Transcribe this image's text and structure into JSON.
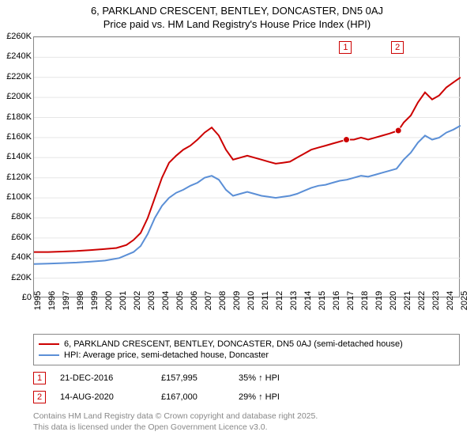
{
  "title_line1": "6, PARKLAND CRESCENT, BENTLEY, DONCASTER, DN5 0AJ",
  "title_line2": "Price paid vs. HM Land Registry's House Price Index (HPI)",
  "chart": {
    "type": "line",
    "background_color": "#ffffff",
    "grid_color": "#e6e6e6",
    "border_color": "#888888",
    "x_min_year": 1995,
    "x_max_year": 2025,
    "x_ticks": [
      1995,
      1996,
      1997,
      1998,
      1999,
      2000,
      2001,
      2002,
      2003,
      2004,
      2005,
      2006,
      2007,
      2008,
      2009,
      2010,
      2011,
      2012,
      2013,
      2014,
      2015,
      2016,
      2017,
      2018,
      2019,
      2020,
      2021,
      2022,
      2023,
      2024,
      2025
    ],
    "y_min": 0,
    "y_max": 260000,
    "y_tick_step": 20000,
    "y_tick_prefix": "£",
    "y_tick_suffix": "K",
    "y_tick_divisor": 1000,
    "axis_fontsize": 11,
    "title_fontsize": 13,
    "series": [
      {
        "id": "subject",
        "label": "6, PARKLAND CRESCENT, BENTLEY, DONCASTER, DN5 0AJ (semi-detached house)",
        "color": "#cc0000",
        "line_width": 2,
        "points": [
          [
            1995.0,
            46000
          ],
          [
            1996.0,
            46000
          ],
          [
            1997.0,
            46500
          ],
          [
            1998.0,
            47000
          ],
          [
            1999.0,
            48000
          ],
          [
            2000.0,
            49000
          ],
          [
            2000.8,
            50000
          ],
          [
            2001.5,
            53000
          ],
          [
            2002.0,
            58000
          ],
          [
            2002.5,
            65000
          ],
          [
            2003.0,
            80000
          ],
          [
            2003.5,
            100000
          ],
          [
            2004.0,
            120000
          ],
          [
            2004.5,
            135000
          ],
          [
            2005.0,
            142000
          ],
          [
            2005.5,
            148000
          ],
          [
            2006.0,
            152000
          ],
          [
            2006.5,
            158000
          ],
          [
            2007.0,
            165000
          ],
          [
            2007.5,
            170000
          ],
          [
            2008.0,
            162000
          ],
          [
            2008.5,
            148000
          ],
          [
            2009.0,
            138000
          ],
          [
            2009.5,
            140000
          ],
          [
            2010.0,
            142000
          ],
          [
            2010.5,
            140000
          ],
          [
            2011.0,
            138000
          ],
          [
            2011.5,
            136000
          ],
          [
            2012.0,
            134000
          ],
          [
            2012.5,
            135000
          ],
          [
            2013.0,
            136000
          ],
          [
            2013.5,
            140000
          ],
          [
            2014.0,
            144000
          ],
          [
            2014.5,
            148000
          ],
          [
            2015.0,
            150000
          ],
          [
            2015.5,
            152000
          ],
          [
            2016.0,
            154000
          ],
          [
            2016.5,
            156000
          ],
          [
            2016.97,
            157995
          ],
          [
            2017.5,
            158000
          ],
          [
            2018.0,
            160000
          ],
          [
            2018.5,
            158000
          ],
          [
            2019.0,
            160000
          ],
          [
            2019.5,
            162000
          ],
          [
            2020.0,
            164000
          ],
          [
            2020.62,
            167000
          ],
          [
            2021.0,
            175000
          ],
          [
            2021.5,
            182000
          ],
          [
            2022.0,
            195000
          ],
          [
            2022.5,
            205000
          ],
          [
            2023.0,
            198000
          ],
          [
            2023.5,
            202000
          ],
          [
            2024.0,
            210000
          ],
          [
            2024.5,
            215000
          ],
          [
            2025.0,
            220000
          ]
        ]
      },
      {
        "id": "hpi",
        "label": "HPI: Average price, semi-detached house, Doncaster",
        "color": "#5b8fd6",
        "line_width": 2,
        "points": [
          [
            1995.0,
            34000
          ],
          [
            1996.0,
            34500
          ],
          [
            1997.0,
            35000
          ],
          [
            1998.0,
            35500
          ],
          [
            1999.0,
            36500
          ],
          [
            2000.0,
            37500
          ],
          [
            2001.0,
            40000
          ],
          [
            2002.0,
            46000
          ],
          [
            2002.5,
            52000
          ],
          [
            2003.0,
            64000
          ],
          [
            2003.5,
            80000
          ],
          [
            2004.0,
            92000
          ],
          [
            2004.5,
            100000
          ],
          [
            2005.0,
            105000
          ],
          [
            2005.5,
            108000
          ],
          [
            2006.0,
            112000
          ],
          [
            2006.5,
            115000
          ],
          [
            2007.0,
            120000
          ],
          [
            2007.5,
            122000
          ],
          [
            2008.0,
            118000
          ],
          [
            2008.5,
            108000
          ],
          [
            2009.0,
            102000
          ],
          [
            2009.5,
            104000
          ],
          [
            2010.0,
            106000
          ],
          [
            2010.5,
            104000
          ],
          [
            2011.0,
            102000
          ],
          [
            2011.5,
            101000
          ],
          [
            2012.0,
            100000
          ],
          [
            2012.5,
            101000
          ],
          [
            2013.0,
            102000
          ],
          [
            2013.5,
            104000
          ],
          [
            2014.0,
            107000
          ],
          [
            2014.5,
            110000
          ],
          [
            2015.0,
            112000
          ],
          [
            2015.5,
            113000
          ],
          [
            2016.0,
            115000
          ],
          [
            2016.5,
            117000
          ],
          [
            2017.0,
            118000
          ],
          [
            2017.5,
            120000
          ],
          [
            2018.0,
            122000
          ],
          [
            2018.5,
            121000
          ],
          [
            2019.0,
            123000
          ],
          [
            2019.5,
            125000
          ],
          [
            2020.0,
            127000
          ],
          [
            2020.5,
            129000
          ],
          [
            2021.0,
            138000
          ],
          [
            2021.5,
            145000
          ],
          [
            2022.0,
            155000
          ],
          [
            2022.5,
            162000
          ],
          [
            2023.0,
            158000
          ],
          [
            2023.5,
            160000
          ],
          [
            2024.0,
            165000
          ],
          [
            2024.5,
            168000
          ],
          [
            2025.0,
            172000
          ]
        ]
      }
    ],
    "sale_markers": [
      {
        "n": "1",
        "year": 2016.97,
        "price": 157995
      },
      {
        "n": "2",
        "year": 2020.62,
        "price": 167000
      }
    ],
    "sale_marker_border": "#cc0000",
    "sale_marker_inline_top": 6
  },
  "legend": {
    "border_color": "#888888",
    "fontsize": 11
  },
  "sales_table": {
    "rows": [
      {
        "n": "1",
        "date": "21-DEC-2016",
        "price": "£157,995",
        "diff": "35% ↑ HPI"
      },
      {
        "n": "2",
        "date": "14-AUG-2020",
        "price": "£167,000",
        "diff": "29% ↑ HPI"
      }
    ]
  },
  "footer_line1": "Contains HM Land Registry data © Crown copyright and database right 2025.",
  "footer_line2": "This data is licensed under the Open Government Licence v3.0.",
  "footer_color": "#888888"
}
